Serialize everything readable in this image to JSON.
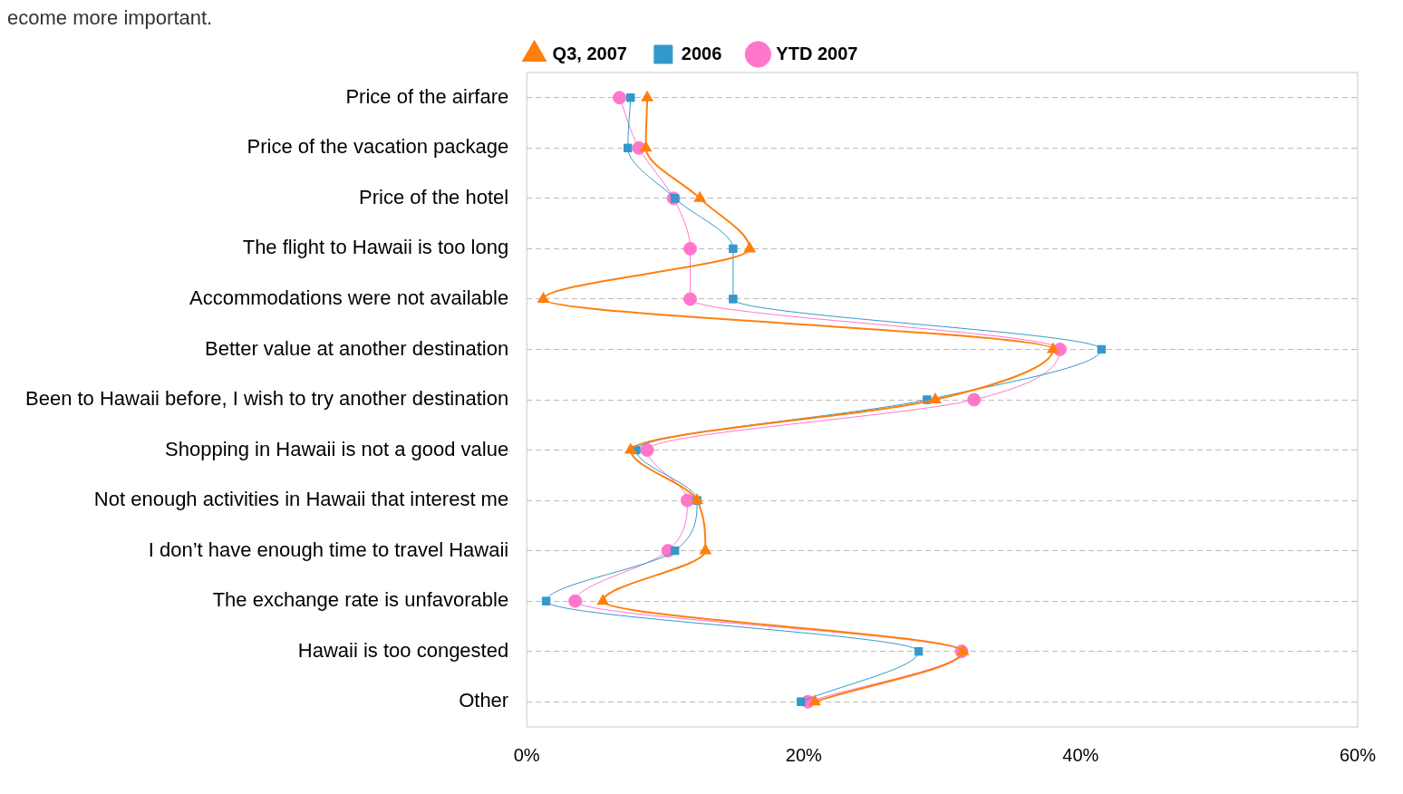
{
  "chart_data": {
    "type": "line",
    "orientation": "horizontal",
    "annotations": [
      "ecome more important."
    ],
    "categories": [
      "Price of the airfare",
      "Price of the vacation package",
      "Price of the hotel",
      "The flight to Hawaii is too long",
      "Accommodations were not available",
      "Better value at another destination",
      "Been to Hawaii before, I wish to try another destination",
      "Shopping in Hawaii is not a good value",
      "Not enough activities in Hawaii that interest me",
      "I don’t have enough time to travel Hawaii",
      "The exchange rate is unfavorable",
      "Hawaii is too congested",
      "Other"
    ],
    "series": [
      {
        "name": "Q3, 2007",
        "color": "#ff7f0e",
        "marker": "triangle",
        "values": [
          8.7,
          8.6,
          12.5,
          16.1,
          1.2,
          38.0,
          29.5,
          7.5,
          12.3,
          12.9,
          5.5,
          31.5,
          20.8
        ]
      },
      {
        "name": "2006",
        "color": "#3399cc",
        "marker": "square",
        "values": [
          7.5,
          7.3,
          10.7,
          14.9,
          14.9,
          41.5,
          28.9,
          7.9,
          12.3,
          10.7,
          1.4,
          28.3,
          19.8
        ]
      },
      {
        "name": "YTD 2007",
        "color": "#ff77cc",
        "marker": "circle",
        "values": [
          6.7,
          8.1,
          10.6,
          11.8,
          11.8,
          38.5,
          32.3,
          8.7,
          11.6,
          10.2,
          3.5,
          31.4,
          20.3
        ]
      }
    ],
    "xlim": [
      0,
      60
    ],
    "xticks": [
      {
        "value": 0,
        "label": "0%"
      },
      {
        "value": 20,
        "label": "20%"
      },
      {
        "value": 40,
        "label": "40%"
      },
      {
        "value": 60,
        "label": "60%"
      }
    ],
    "grid": "y",
    "legend": "top",
    "line_style": "solid"
  }
}
